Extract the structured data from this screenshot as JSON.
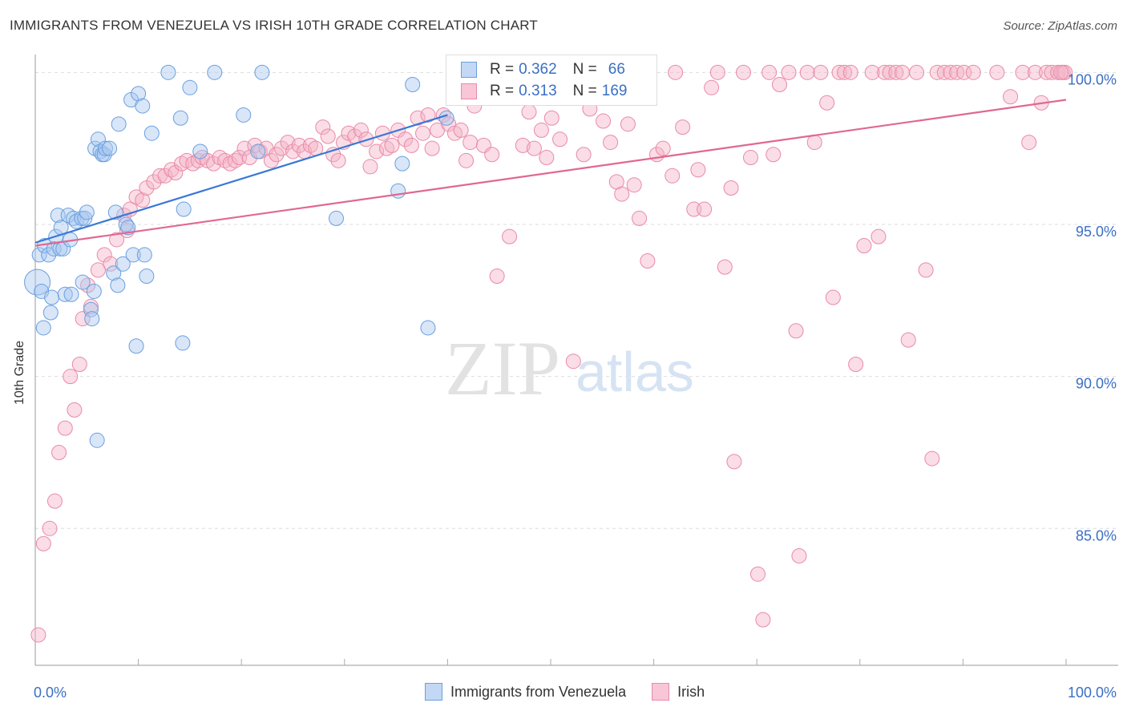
{
  "title": "IMMIGRANTS FROM VENEZUELA VS IRISH 10TH GRADE CORRELATION CHART",
  "source": "Source: ZipAtlas.com",
  "watermark": {
    "zip": "ZIP",
    "atlas": "atlas"
  },
  "legend": {
    "rows": [
      {
        "r_label": "R =",
        "r_value": "0.362",
        "n_label": "N =",
        "n_value": "66"
      },
      {
        "r_label": "R =",
        "r_value": "0.313",
        "n_label": "N =",
        "n_value": "169"
      }
    ]
  },
  "colors": {
    "blue": "#a9c8f0",
    "blue_edge": "#6a9fe0",
    "blue_line": "#3a78d6",
    "pink": "#f5b4c8",
    "pink_edge": "#e98aa8",
    "pink_line": "#e06890",
    "value_text": "#3a6fc4"
  },
  "chart_data": {
    "type": "scatter",
    "title": "IMMIGRANTS FROM VENEZUELA VS IRISH 10TH GRADE CORRELATION CHART",
    "xlabel": "",
    "ylabel": "10th Grade",
    "xlim": [
      0,
      100
    ],
    "ylim": [
      80.5,
      100.8
    ],
    "x_tick_labels": [
      "0.0%",
      "100.0%"
    ],
    "y_ticks": [
      85,
      90,
      95,
      100
    ],
    "y_tick_labels": [
      "85.0%",
      "90.0%",
      "95.0%",
      "100.0%"
    ],
    "grid": true,
    "legend_position": "top-center",
    "series": [
      {
        "name": "Immigrants from Venezuela",
        "r": 0.362,
        "n": 66,
        "trend": [
          [
            0,
            94.4
          ],
          [
            40,
            98.6
          ]
        ],
        "points": [
          [
            0.2,
            93.1
          ],
          [
            0.4,
            94.0
          ],
          [
            0.6,
            92.8
          ],
          [
            0.8,
            91.6
          ],
          [
            0.9,
            94.3
          ],
          [
            1.3,
            94.0
          ],
          [
            1.5,
            92.1
          ],
          [
            1.6,
            92.6
          ],
          [
            1.8,
            94.2
          ],
          [
            2.0,
            94.6
          ],
          [
            2.2,
            95.3
          ],
          [
            2.4,
            94.2
          ],
          [
            2.5,
            94.9
          ],
          [
            2.7,
            94.2
          ],
          [
            2.9,
            92.7
          ],
          [
            3.2,
            95.3
          ],
          [
            3.4,
            94.5
          ],
          [
            3.5,
            92.7
          ],
          [
            3.7,
            95.2
          ],
          [
            4.0,
            95.1
          ],
          [
            4.5,
            95.2
          ],
          [
            4.6,
            93.1
          ],
          [
            4.8,
            95.2
          ],
          [
            5.0,
            95.4
          ],
          [
            5.4,
            92.2
          ],
          [
            5.5,
            91.9
          ],
          [
            5.7,
            92.8
          ],
          [
            5.8,
            97.5
          ],
          [
            6.0,
            87.9
          ],
          [
            6.1,
            97.8
          ],
          [
            6.3,
            97.4
          ],
          [
            6.5,
            97.3
          ],
          [
            6.7,
            97.3
          ],
          [
            6.8,
            97.5
          ],
          [
            7.2,
            97.5
          ],
          [
            7.6,
            93.4
          ],
          [
            7.8,
            95.4
          ],
          [
            8.0,
            93.0
          ],
          [
            8.1,
            98.3
          ],
          [
            8.5,
            93.7
          ],
          [
            8.8,
            95.0
          ],
          [
            9.0,
            94.9
          ],
          [
            9.3,
            99.1
          ],
          [
            9.5,
            94.0
          ],
          [
            9.8,
            91.0
          ],
          [
            10.0,
            99.3
          ],
          [
            10.4,
            98.9
          ],
          [
            10.6,
            94.0
          ],
          [
            10.8,
            93.3
          ],
          [
            11.3,
            98.0
          ],
          [
            12.9,
            100.0
          ],
          [
            14.1,
            98.5
          ],
          [
            14.3,
            91.1
          ],
          [
            14.4,
            95.5
          ],
          [
            15.0,
            99.5
          ],
          [
            16.0,
            97.4
          ],
          [
            17.4,
            100.0
          ],
          [
            20.2,
            98.6
          ],
          [
            21.6,
            97.4
          ],
          [
            22.0,
            100.0
          ],
          [
            29.2,
            95.2
          ],
          [
            35.2,
            96.1
          ],
          [
            35.6,
            97.0
          ],
          [
            36.6,
            99.6
          ],
          [
            38.1,
            91.6
          ],
          [
            39.9,
            98.5
          ]
        ]
      },
      {
        "name": "Irish",
        "r": 0.313,
        "n": 169,
        "trend": [
          [
            0,
            94.3
          ],
          [
            100,
            99.1
          ]
        ],
        "points": [
          [
            0.3,
            81.5
          ],
          [
            0.8,
            84.5
          ],
          [
            1.4,
            85.0
          ],
          [
            1.9,
            85.9
          ],
          [
            2.3,
            87.5
          ],
          [
            2.9,
            88.3
          ],
          [
            3.4,
            90.0
          ],
          [
            3.8,
            88.9
          ],
          [
            4.3,
            90.4
          ],
          [
            4.6,
            91.9
          ],
          [
            5.1,
            93.0
          ],
          [
            5.4,
            92.3
          ],
          [
            6.1,
            93.5
          ],
          [
            6.7,
            94.0
          ],
          [
            7.3,
            93.7
          ],
          [
            7.9,
            94.5
          ],
          [
            8.6,
            95.3
          ],
          [
            8.9,
            94.8
          ],
          [
            9.2,
            95.5
          ],
          [
            9.8,
            95.9
          ],
          [
            10.4,
            95.8
          ],
          [
            10.8,
            96.2
          ],
          [
            11.5,
            96.4
          ],
          [
            12.1,
            96.6
          ],
          [
            12.6,
            96.6
          ],
          [
            13.2,
            96.8
          ],
          [
            13.6,
            96.7
          ],
          [
            14.2,
            97.0
          ],
          [
            14.7,
            97.1
          ],
          [
            15.3,
            97.0
          ],
          [
            15.8,
            97.1
          ],
          [
            16.2,
            97.2
          ],
          [
            16.7,
            97.1
          ],
          [
            17.3,
            97.0
          ],
          [
            17.9,
            97.2
          ],
          [
            18.4,
            97.1
          ],
          [
            18.9,
            97.0
          ],
          [
            19.4,
            97.1
          ],
          [
            19.8,
            97.2
          ],
          [
            20.3,
            97.5
          ],
          [
            20.8,
            97.2
          ],
          [
            21.3,
            97.6
          ],
          [
            21.8,
            97.4
          ],
          [
            22.4,
            97.5
          ],
          [
            22.9,
            97.1
          ],
          [
            23.4,
            97.3
          ],
          [
            23.9,
            97.5
          ],
          [
            24.5,
            97.7
          ],
          [
            25.0,
            97.4
          ],
          [
            25.6,
            97.6
          ],
          [
            26.1,
            97.4
          ],
          [
            26.7,
            97.6
          ],
          [
            27.2,
            97.5
          ],
          [
            27.9,
            98.2
          ],
          [
            28.4,
            97.9
          ],
          [
            28.9,
            97.3
          ],
          [
            29.4,
            97.1
          ],
          [
            29.9,
            97.7
          ],
          [
            30.4,
            98.0
          ],
          [
            31.0,
            97.9
          ],
          [
            31.6,
            98.1
          ],
          [
            32.1,
            97.8
          ],
          [
            32.5,
            96.9
          ],
          [
            33.1,
            97.4
          ],
          [
            33.7,
            98.0
          ],
          [
            34.1,
            97.5
          ],
          [
            34.6,
            97.6
          ],
          [
            35.2,
            98.1
          ],
          [
            35.9,
            97.8
          ],
          [
            36.5,
            97.6
          ],
          [
            37.1,
            98.5
          ],
          [
            37.6,
            98.0
          ],
          [
            38.1,
            98.6
          ],
          [
            38.5,
            97.5
          ],
          [
            39.0,
            98.1
          ],
          [
            39.6,
            98.6
          ],
          [
            40.1,
            98.3
          ],
          [
            40.7,
            98.0
          ],
          [
            41.3,
            98.1
          ],
          [
            41.8,
            97.1
          ],
          [
            42.2,
            97.7
          ],
          [
            42.6,
            98.9
          ],
          [
            43.5,
            97.6
          ],
          [
            44.3,
            97.3
          ],
          [
            44.8,
            93.3
          ],
          [
            46.0,
            94.6
          ],
          [
            46.5,
            99.4
          ],
          [
            47.3,
            97.6
          ],
          [
            47.9,
            98.7
          ],
          [
            48.4,
            97.5
          ],
          [
            49.1,
            98.1
          ],
          [
            49.6,
            97.2
          ],
          [
            50.1,
            98.5
          ],
          [
            50.6,
            100.0
          ],
          [
            50.9,
            97.8
          ],
          [
            51.6,
            99.8
          ],
          [
            52.2,
            90.5
          ],
          [
            53.2,
            97.3
          ],
          [
            53.8,
            98.8
          ],
          [
            54.4,
            100.0
          ],
          [
            55.1,
            98.4
          ],
          [
            55.8,
            97.7
          ],
          [
            56.4,
            96.4
          ],
          [
            56.9,
            96.0
          ],
          [
            57.5,
            98.3
          ],
          [
            58.1,
            96.3
          ],
          [
            58.6,
            95.2
          ],
          [
            59.4,
            93.8
          ],
          [
            60.3,
            97.3
          ],
          [
            60.9,
            97.5
          ],
          [
            61.8,
            96.6
          ],
          [
            62.1,
            100.0
          ],
          [
            62.8,
            98.2
          ],
          [
            63.9,
            95.5
          ],
          [
            64.3,
            96.8
          ],
          [
            64.9,
            95.5
          ],
          [
            65.6,
            99.5
          ],
          [
            66.2,
            100.0
          ],
          [
            66.9,
            93.6
          ],
          [
            67.5,
            96.2
          ],
          [
            67.8,
            87.2
          ],
          [
            68.7,
            100.0
          ],
          [
            69.4,
            97.2
          ],
          [
            70.1,
            83.5
          ],
          [
            70.6,
            82.0
          ],
          [
            71.2,
            100.0
          ],
          [
            71.6,
            97.3
          ],
          [
            72.2,
            99.6
          ],
          [
            73.1,
            100.0
          ],
          [
            73.8,
            91.5
          ],
          [
            74.1,
            84.1
          ],
          [
            74.9,
            100.0
          ],
          [
            75.6,
            97.7
          ],
          [
            76.2,
            100.0
          ],
          [
            76.8,
            99.0
          ],
          [
            77.4,
            92.6
          ],
          [
            78.0,
            100.0
          ],
          [
            78.5,
            100.0
          ],
          [
            79.1,
            100.0
          ],
          [
            79.6,
            90.4
          ],
          [
            80.4,
            94.3
          ],
          [
            81.2,
            100.0
          ],
          [
            81.8,
            94.6
          ],
          [
            82.4,
            100.0
          ],
          [
            82.9,
            100.0
          ],
          [
            83.5,
            100.0
          ],
          [
            84.1,
            100.0
          ],
          [
            84.7,
            91.2
          ],
          [
            85.5,
            100.0
          ],
          [
            86.4,
            93.5
          ],
          [
            87.0,
            87.3
          ],
          [
            87.5,
            100.0
          ],
          [
            88.2,
            100.0
          ],
          [
            88.8,
            100.0
          ],
          [
            89.4,
            100.0
          ],
          [
            90.1,
            100.0
          ],
          [
            91.0,
            100.0
          ],
          [
            93.3,
            100.0
          ],
          [
            94.6,
            99.2
          ],
          [
            95.8,
            100.0
          ],
          [
            96.4,
            97.7
          ],
          [
            97.0,
            100.0
          ],
          [
            97.6,
            99.0
          ],
          [
            98.1,
            100.0
          ],
          [
            98.6,
            100.0
          ],
          [
            99.2,
            100.0
          ],
          [
            99.7,
            100.0
          ],
          [
            99.9,
            100.0
          ],
          [
            99.5,
            100.0
          ]
        ]
      }
    ]
  }
}
